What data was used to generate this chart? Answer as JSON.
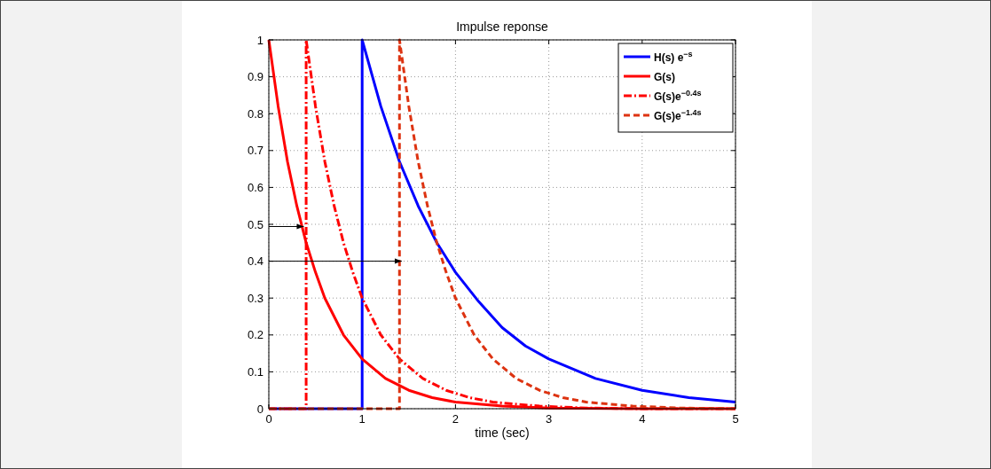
{
  "chart_data": {
    "type": "line",
    "title": "Impulse reponse",
    "xlabel": "time (sec)",
    "xlim": [
      0,
      5
    ],
    "xticks": [
      0,
      1,
      2,
      3,
      4,
      5
    ],
    "ylim": [
      0,
      1
    ],
    "yticks": [
      0,
      0.1,
      0.2,
      0.3,
      0.4,
      0.5,
      0.6,
      0.7,
      0.8,
      0.9,
      1
    ],
    "grid": true,
    "legend": "top right",
    "series": [
      {
        "name": "H(s) e$^{−s}$",
        "color": "#0000ff",
        "line_style": "solid",
        "x": [
          0,
          1,
          1,
          1.2,
          1.4,
          1.6,
          1.8,
          2,
          2.25,
          2.5,
          2.75,
          3,
          3.5,
          4,
          4.5,
          5
        ],
        "values": [
          0,
          0,
          1,
          0.82,
          0.67,
          0.55,
          0.45,
          0.37,
          0.29,
          0.22,
          0.17,
          0.135,
          0.082,
          0.05,
          0.03,
          0.018
        ]
      },
      {
        "name": "G(s)",
        "color": "#ff0000",
        "line_style": "solid",
        "x": [
          0,
          0.1,
          0.2,
          0.3,
          0.4,
          0.5,
          0.6,
          0.8,
          1,
          1.25,
          1.5,
          1.75,
          2,
          2.5,
          3,
          4,
          5
        ],
        "values": [
          1,
          0.82,
          0.67,
          0.55,
          0.45,
          0.37,
          0.3,
          0.2,
          0.135,
          0.082,
          0.05,
          0.03,
          0.018,
          0.007,
          0.002,
          0,
          0
        ]
      },
      {
        "name": "G(s)e$^{−0.4s}$",
        "color": "#ff0000",
        "line_style": "dashdot",
        "x": [
          0,
          0.4,
          0.4,
          0.5,
          0.6,
          0.7,
          0.8,
          0.9,
          1,
          1.2,
          1.4,
          1.65,
          1.9,
          2.15,
          2.4,
          2.9,
          3.4,
          4,
          5
        ],
        "values": [
          0,
          0,
          1,
          0.82,
          0.67,
          0.55,
          0.45,
          0.37,
          0.3,
          0.2,
          0.135,
          0.082,
          0.05,
          0.03,
          0.018,
          0.007,
          0.002,
          0,
          0
        ]
      },
      {
        "name": "G(s)e$^{−1.4s}$",
        "color": "#dd3311",
        "line_style": "dashed",
        "x": [
          0,
          1.4,
          1.4,
          1.5,
          1.6,
          1.7,
          1.8,
          1.9,
          2,
          2.2,
          2.4,
          2.65,
          2.9,
          3.15,
          3.4,
          3.9,
          4.4,
          5
        ],
        "values": [
          0,
          0,
          1,
          0.82,
          0.67,
          0.55,
          0.45,
          0.37,
          0.3,
          0.2,
          0.135,
          0.082,
          0.05,
          0.03,
          0.018,
          0.007,
          0.002,
          0
        ]
      }
    ]
  }
}
